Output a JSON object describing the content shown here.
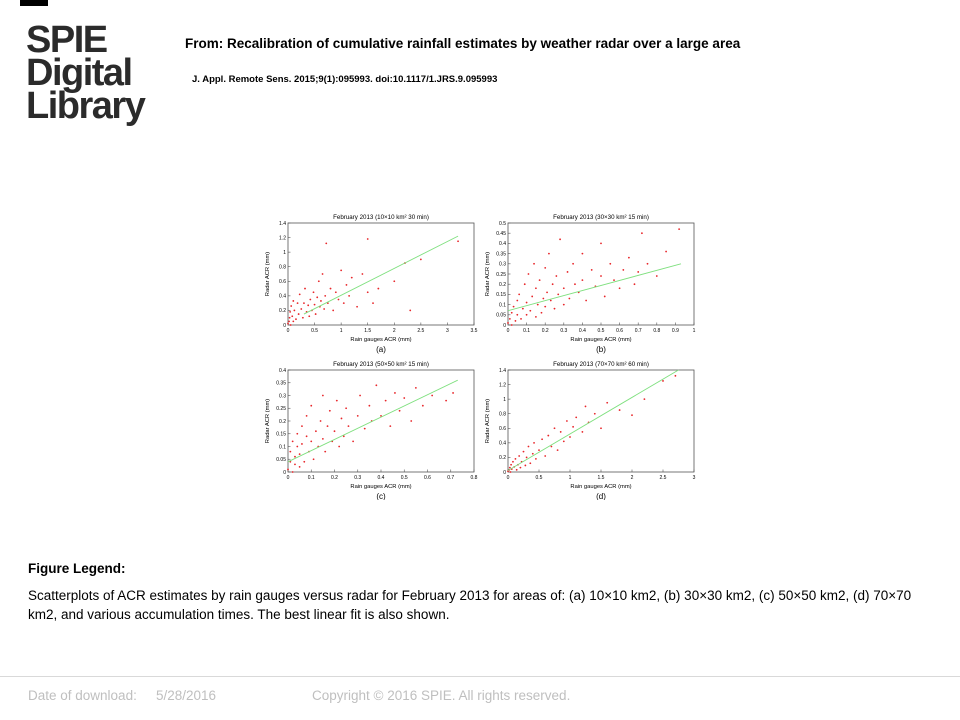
{
  "logo": {
    "lines": [
      "SPIE",
      "Digital",
      "Library"
    ]
  },
  "header": {
    "title": "From: Recalibration of cumulative rainfall estimates by weather radar over a large area",
    "citation": "J. Appl. Remote Sens. 2015;9(1):095993. doi:10.1117/1.JRS.9.095993"
  },
  "colors": {
    "points": "#e8262a",
    "fit": "#7fe07f",
    "frame": "#555555"
  },
  "chart_data": [
    {
      "type": "scatter",
      "panel": "(a)",
      "title": "February 2013 (10×10 km² 30 min)",
      "xlabel": "Rain gauges ACR (mm)",
      "ylabel": "Radar ACR (mm)",
      "xlim": [
        0,
        3.5
      ],
      "ylim": [
        0,
        1.4
      ],
      "xticks": [
        0,
        0.5,
        1,
        1.5,
        2,
        2.5,
        3,
        3.5
      ],
      "yticks": [
        0,
        0.2,
        0.4,
        0.6,
        0.8,
        1,
        1.2,
        1.4
      ],
      "fit": [
        [
          0.3,
          0.15
        ],
        [
          3.2,
          1.22
        ]
      ],
      "points": [
        [
          0.0,
          0.02
        ],
        [
          0.02,
          0.05
        ],
        [
          0.03,
          0.1
        ],
        [
          0.05,
          0.0
        ],
        [
          0.04,
          0.18
        ],
        [
          0.06,
          0.26
        ],
        [
          0.08,
          0.12
        ],
        [
          0.1,
          0.33
        ],
        [
          0.1,
          0.05
        ],
        [
          0.12,
          0.2
        ],
        [
          0.15,
          0.08
        ],
        [
          0.18,
          0.3
        ],
        [
          0.2,
          0.15
        ],
        [
          0.22,
          0.42
        ],
        [
          0.25,
          0.22
        ],
        [
          0.28,
          0.1
        ],
        [
          0.3,
          0.3
        ],
        [
          0.32,
          0.5
        ],
        [
          0.35,
          0.18
        ],
        [
          0.38,
          0.27
        ],
        [
          0.4,
          0.12
        ],
        [
          0.42,
          0.35
        ],
        [
          0.45,
          0.2
        ],
        [
          0.48,
          0.45
        ],
        [
          0.5,
          0.28
        ],
        [
          0.52,
          0.15
        ],
        [
          0.55,
          0.38
        ],
        [
          0.58,
          0.6
        ],
        [
          0.6,
          0.25
        ],
        [
          0.62,
          0.33
        ],
        [
          0.65,
          0.7
        ],
        [
          0.68,
          0.22
        ],
        [
          0.7,
          0.4
        ],
        [
          0.72,
          1.12
        ],
        [
          0.75,
          0.3
        ],
        [
          0.8,
          0.5
        ],
        [
          0.85,
          0.2
        ],
        [
          0.9,
          0.45
        ],
        [
          0.95,
          0.35
        ],
        [
          1.0,
          0.75
        ],
        [
          1.05,
          0.3
        ],
        [
          1.1,
          0.55
        ],
        [
          1.15,
          0.4
        ],
        [
          1.2,
          0.65
        ],
        [
          1.3,
          0.25
        ],
        [
          1.4,
          0.7
        ],
        [
          1.5,
          0.45
        ],
        [
          1.5,
          1.18
        ],
        [
          1.6,
          0.3
        ],
        [
          1.7,
          0.5
        ],
        [
          2.0,
          0.6
        ],
        [
          2.2,
          0.85
        ],
        [
          2.3,
          0.2
        ],
        [
          2.5,
          0.9
        ],
        [
          3.2,
          1.15
        ]
      ]
    },
    {
      "type": "scatter",
      "panel": "(b)",
      "title": "February 2013 (30×30 km² 15 min)",
      "xlabel": "Rain gauges ACR (mm)",
      "ylabel": "Radar ACR (mm)",
      "xlim": [
        0,
        1
      ],
      "ylim": [
        0,
        0.5
      ],
      "xticks": [
        0,
        0.1,
        0.2,
        0.3,
        0.4,
        0.5,
        0.6,
        0.7,
        0.8,
        0.9,
        1
      ],
      "yticks": [
        0,
        0.05,
        0.1,
        0.15,
        0.2,
        0.25,
        0.3,
        0.35,
        0.4,
        0.45,
        0.5
      ],
      "fit": [
        [
          0.0,
          0.07
        ],
        [
          0.93,
          0.3
        ]
      ],
      "points": [
        [
          0.0,
          0.01
        ],
        [
          0.01,
          0.03
        ],
        [
          0.02,
          0.06
        ],
        [
          0.02,
          0.0
        ],
        [
          0.03,
          0.09
        ],
        [
          0.04,
          0.02
        ],
        [
          0.05,
          0.12
        ],
        [
          0.05,
          0.05
        ],
        [
          0.06,
          0.15
        ],
        [
          0.07,
          0.03
        ],
        [
          0.08,
          0.08
        ],
        [
          0.09,
          0.2
        ],
        [
          0.1,
          0.05
        ],
        [
          0.1,
          0.11
        ],
        [
          0.11,
          0.25
        ],
        [
          0.12,
          0.07
        ],
        [
          0.13,
          0.14
        ],
        [
          0.14,
          0.3
        ],
        [
          0.15,
          0.04
        ],
        [
          0.15,
          0.18
        ],
        [
          0.16,
          0.1
        ],
        [
          0.17,
          0.22
        ],
        [
          0.18,
          0.06
        ],
        [
          0.19,
          0.13
        ],
        [
          0.2,
          0.28
        ],
        [
          0.2,
          0.09
        ],
        [
          0.21,
          0.16
        ],
        [
          0.22,
          0.35
        ],
        [
          0.23,
          0.12
        ],
        [
          0.24,
          0.2
        ],
        [
          0.25,
          0.08
        ],
        [
          0.26,
          0.24
        ],
        [
          0.27,
          0.15
        ],
        [
          0.28,
          0.42
        ],
        [
          0.3,
          0.1
        ],
        [
          0.3,
          0.18
        ],
        [
          0.32,
          0.26
        ],
        [
          0.33,
          0.13
        ],
        [
          0.35,
          0.3
        ],
        [
          0.36,
          0.2
        ],
        [
          0.38,
          0.16
        ],
        [
          0.4,
          0.22
        ],
        [
          0.4,
          0.35
        ],
        [
          0.42,
          0.12
        ],
        [
          0.45,
          0.27
        ],
        [
          0.47,
          0.19
        ],
        [
          0.5,
          0.24
        ],
        [
          0.5,
          0.4
        ],
        [
          0.52,
          0.14
        ],
        [
          0.55,
          0.3
        ],
        [
          0.57,
          0.22
        ],
        [
          0.6,
          0.18
        ],
        [
          0.62,
          0.27
        ],
        [
          0.65,
          0.33
        ],
        [
          0.68,
          0.2
        ],
        [
          0.7,
          0.26
        ],
        [
          0.72,
          0.45
        ],
        [
          0.75,
          0.3
        ],
        [
          0.8,
          0.24
        ],
        [
          0.85,
          0.36
        ],
        [
          0.92,
          0.47
        ]
      ]
    },
    {
      "type": "scatter",
      "panel": "(c)",
      "title": "February 2013 (50×50 km² 15 min)",
      "xlabel": "Rain gauges ACR (mm)",
      "ylabel": "Radar ACR (mm)",
      "xlim": [
        0,
        0.8
      ],
      "ylim": [
        0,
        0.4
      ],
      "xticks": [
        0,
        0.1,
        0.2,
        0.3,
        0.4,
        0.5,
        0.6,
        0.7,
        0.8
      ],
      "yticks": [
        0,
        0.05,
        0.1,
        0.15,
        0.2,
        0.25,
        0.3,
        0.35,
        0.4
      ],
      "fit": [
        [
          0.0,
          0.04
        ],
        [
          0.73,
          0.36
        ]
      ],
      "points": [
        [
          0.0,
          0.01
        ],
        [
          0.01,
          0.04
        ],
        [
          0.01,
          0.08
        ],
        [
          0.02,
          0.0
        ],
        [
          0.02,
          0.12
        ],
        [
          0.03,
          0.03
        ],
        [
          0.03,
          0.06
        ],
        [
          0.04,
          0.1
        ],
        [
          0.04,
          0.15
        ],
        [
          0.05,
          0.02
        ],
        [
          0.05,
          0.07
        ],
        [
          0.06,
          0.18
        ],
        [
          0.06,
          0.11
        ],
        [
          0.07,
          0.04
        ],
        [
          0.08,
          0.14
        ],
        [
          0.08,
          0.22
        ],
        [
          0.09,
          0.08
        ],
        [
          0.1,
          0.12
        ],
        [
          0.1,
          0.26
        ],
        [
          0.11,
          0.05
        ],
        [
          0.12,
          0.16
        ],
        [
          0.13,
          0.1
        ],
        [
          0.14,
          0.2
        ],
        [
          0.15,
          0.13
        ],
        [
          0.15,
          0.3
        ],
        [
          0.16,
          0.08
        ],
        [
          0.17,
          0.18
        ],
        [
          0.18,
          0.24
        ],
        [
          0.19,
          0.12
        ],
        [
          0.2,
          0.16
        ],
        [
          0.21,
          0.28
        ],
        [
          0.22,
          0.1
        ],
        [
          0.23,
          0.21
        ],
        [
          0.24,
          0.14
        ],
        [
          0.25,
          0.25
        ],
        [
          0.26,
          0.18
        ],
        [
          0.28,
          0.12
        ],
        [
          0.3,
          0.22
        ],
        [
          0.31,
          0.3
        ],
        [
          0.33,
          0.17
        ],
        [
          0.35,
          0.26
        ],
        [
          0.36,
          0.2
        ],
        [
          0.38,
          0.34
        ],
        [
          0.4,
          0.22
        ],
        [
          0.42,
          0.28
        ],
        [
          0.44,
          0.18
        ],
        [
          0.46,
          0.31
        ],
        [
          0.48,
          0.24
        ],
        [
          0.5,
          0.29
        ],
        [
          0.53,
          0.2
        ],
        [
          0.55,
          0.33
        ],
        [
          0.58,
          0.26
        ],
        [
          0.62,
          0.3
        ],
        [
          0.68,
          0.28
        ],
        [
          0.71,
          0.31
        ]
      ]
    },
    {
      "type": "scatter",
      "panel": "(d)",
      "title": "February 2013 (70×70 km² 60 min)",
      "xlabel": "Rain gauges ACR (mm)",
      "ylabel": "Radar ACR (mm)",
      "xlim": [
        0,
        3
      ],
      "ylim": [
        0,
        1.4
      ],
      "xticks": [
        0,
        0.5,
        1,
        1.5,
        2,
        2.5,
        3
      ],
      "yticks": [
        0,
        0.2,
        0.4,
        0.6,
        0.8,
        1,
        1.2,
        1.4
      ],
      "fit": [
        [
          0.0,
          0.02
        ],
        [
          2.75,
          1.4
        ]
      ],
      "points": [
        [
          0.0,
          0.01
        ],
        [
          0.02,
          0.03
        ],
        [
          0.03,
          0.06
        ],
        [
          0.04,
          0.0
        ],
        [
          0.05,
          0.1
        ],
        [
          0.06,
          0.04
        ],
        [
          0.08,
          0.14
        ],
        [
          0.1,
          0.07
        ],
        [
          0.12,
          0.18
        ],
        [
          0.14,
          0.03
        ],
        [
          0.16,
          0.1
        ],
        [
          0.18,
          0.22
        ],
        [
          0.2,
          0.06
        ],
        [
          0.22,
          0.14
        ],
        [
          0.25,
          0.28
        ],
        [
          0.28,
          0.09
        ],
        [
          0.3,
          0.2
        ],
        [
          0.33,
          0.35
        ],
        [
          0.36,
          0.12
        ],
        [
          0.4,
          0.25
        ],
        [
          0.42,
          0.4
        ],
        [
          0.45,
          0.18
        ],
        [
          0.5,
          0.3
        ],
        [
          0.55,
          0.45
        ],
        [
          0.6,
          0.22
        ],
        [
          0.65,
          0.5
        ],
        [
          0.7,
          0.35
        ],
        [
          0.75,
          0.6
        ],
        [
          0.8,
          0.3
        ],
        [
          0.85,
          0.55
        ],
        [
          0.9,
          0.42
        ],
        [
          0.95,
          0.7
        ],
        [
          1.0,
          0.48
        ],
        [
          1.05,
          0.62
        ],
        [
          1.1,
          0.75
        ],
        [
          1.2,
          0.55
        ],
        [
          1.25,
          0.9
        ],
        [
          1.3,
          0.68
        ],
        [
          1.4,
          0.8
        ],
        [
          1.5,
          0.6
        ],
        [
          1.6,
          0.95
        ],
        [
          1.8,
          0.85
        ],
        [
          2.0,
          0.78
        ],
        [
          2.2,
          1.0
        ],
        [
          2.5,
          1.25
        ],
        [
          2.7,
          1.32
        ]
      ]
    }
  ],
  "legend": {
    "heading": "Figure Legend:",
    "text": "Scatterplots of ACR estimates by rain gauges versus radar for February 2013 for areas of: (a) 10×10 km2, (b) 30×30 km2, (c) 50×50 km2, (d) 70×70 km2, and various accumulation times. The best linear fit is also shown."
  },
  "footer": {
    "date_label": "Date of download:",
    "date": "5/28/2016",
    "copyright": "Copyright © 2016 SPIE. All rights reserved."
  }
}
